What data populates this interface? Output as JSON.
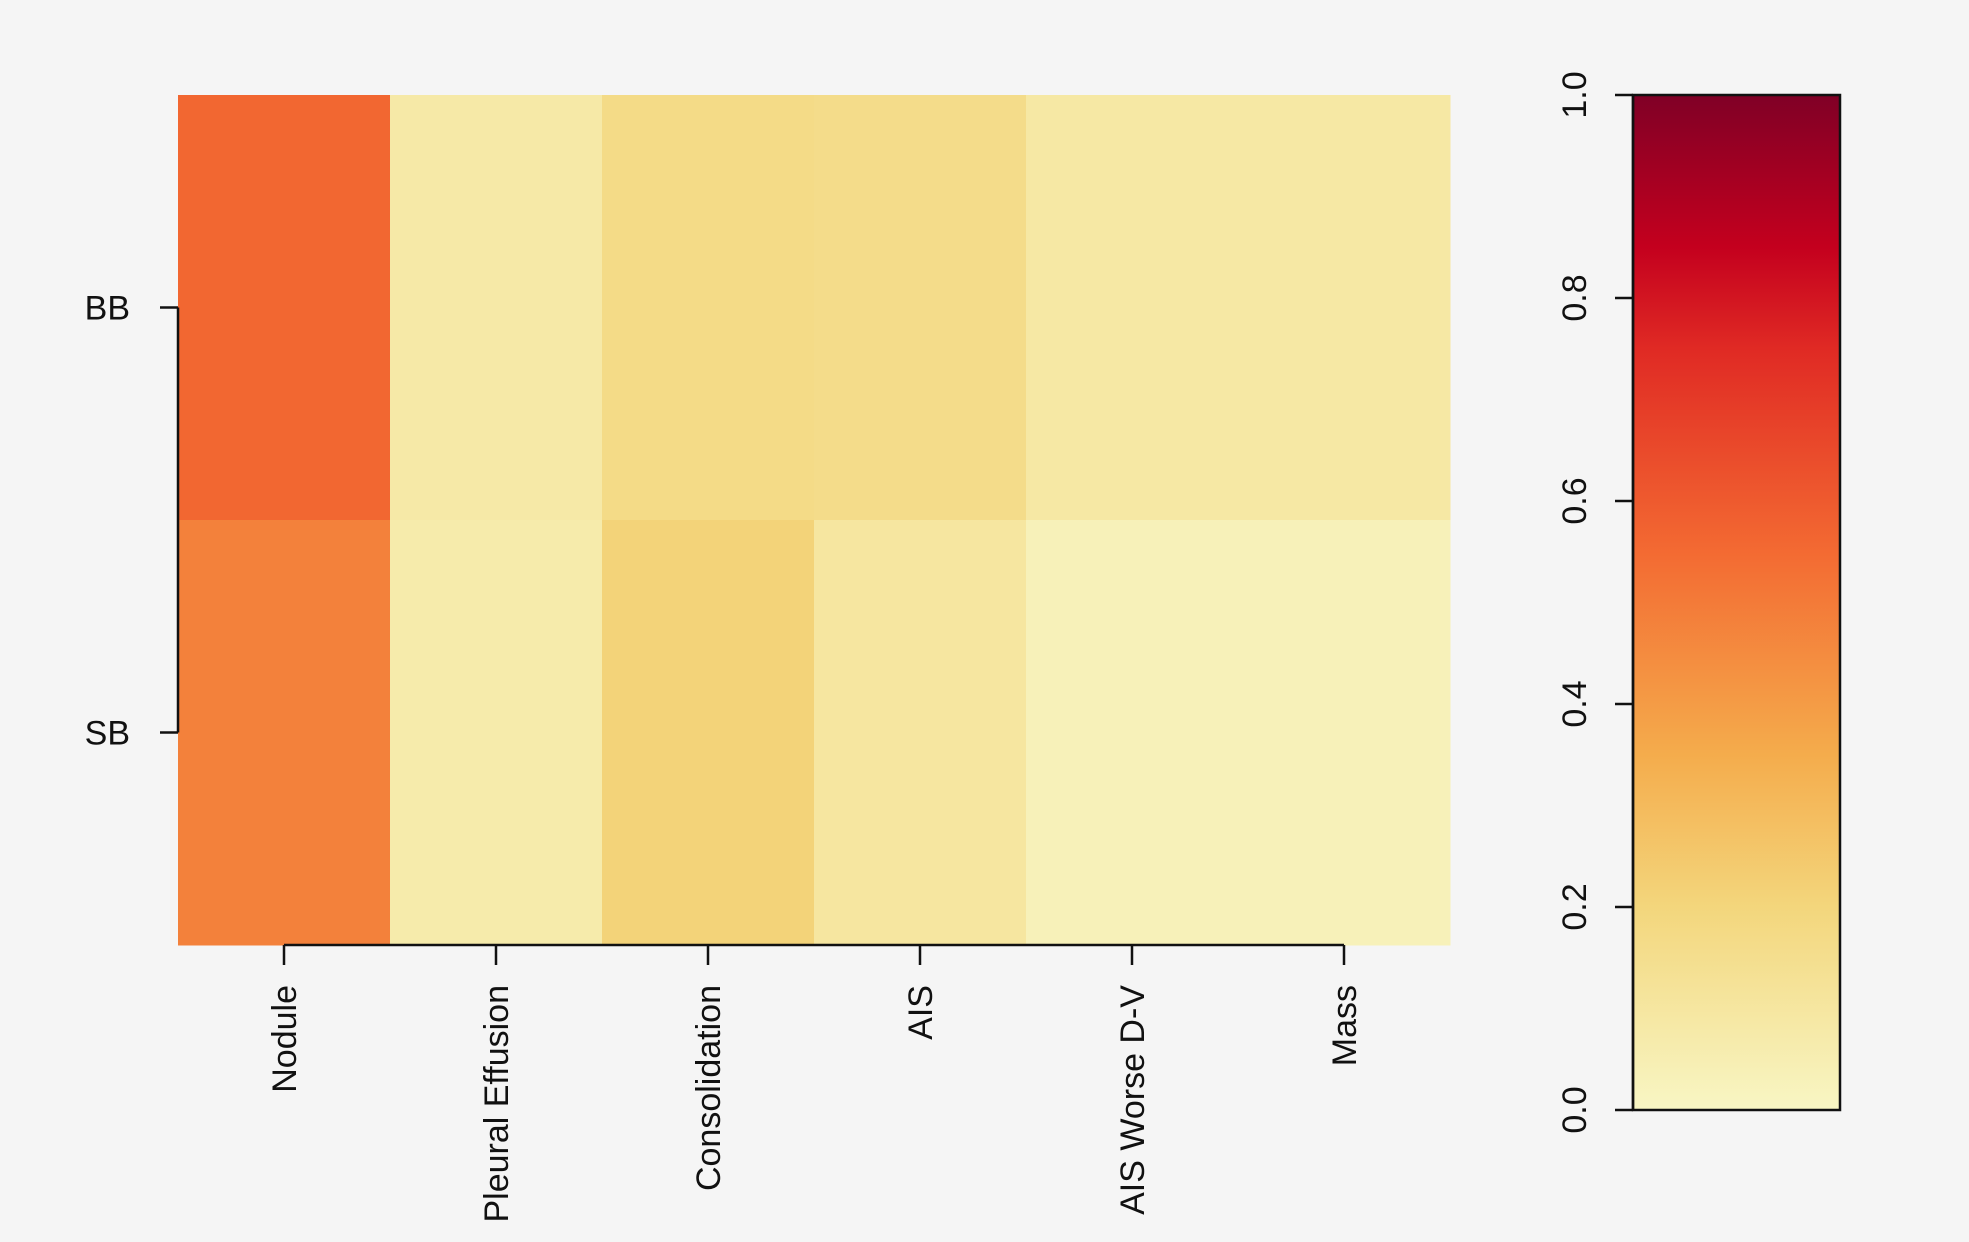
{
  "chart_data": {
    "type": "heatmap",
    "rows": [
      "BB",
      "SB"
    ],
    "columns": [
      "Nodule",
      "Pleural Effusion",
      "Consolidation",
      "AIS",
      "AIS Worse D-V",
      "Mass"
    ],
    "values": [
      [
        0.56,
        0.08,
        0.17,
        0.16,
        0.09,
        0.09
      ],
      [
        0.48,
        0.07,
        0.21,
        0.1,
        0.03,
        0.03
      ]
    ],
    "colorbar": {
      "range": [
        0.0,
        1.0
      ],
      "ticks": [
        "0.0",
        "0.2",
        "0.4",
        "0.6",
        "0.8",
        "1.0"
      ],
      "stops": [
        {
          "v": 0.0,
          "c": "#f8f6c4"
        },
        {
          "v": 0.2,
          "c": "#f3d67c"
        },
        {
          "v": 0.35,
          "c": "#f4ac4c"
        },
        {
          "v": 0.55,
          "c": "#f36a32"
        },
        {
          "v": 0.75,
          "c": "#e02a24"
        },
        {
          "v": 0.85,
          "c": "#c4001e"
        },
        {
          "v": 1.0,
          "c": "#800026"
        }
      ]
    },
    "grid": false,
    "legend": "right"
  }
}
